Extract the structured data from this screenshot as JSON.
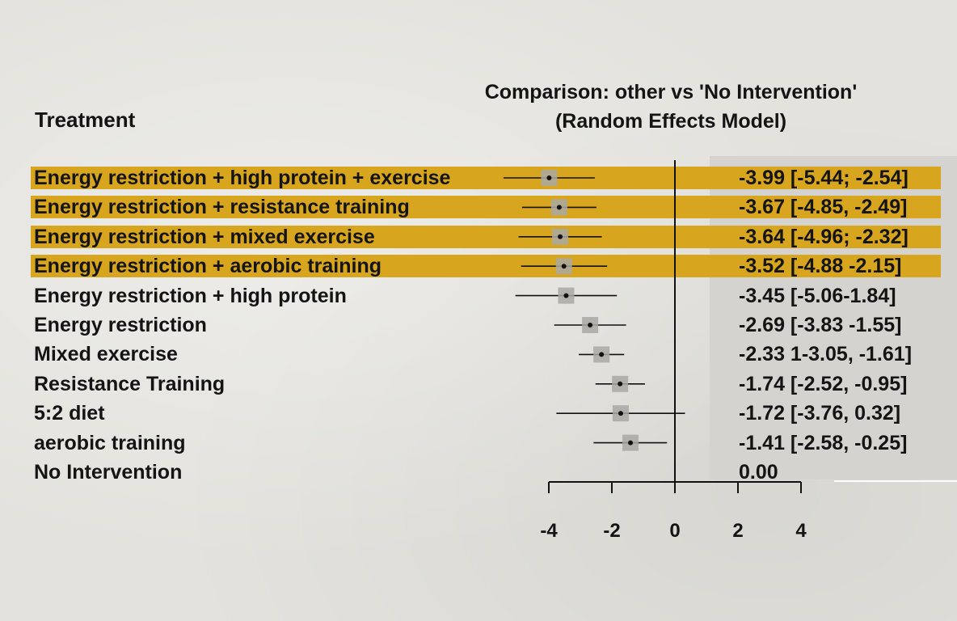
{
  "header": {
    "treatment_label": "Treatment",
    "title_line1": "Comparison: other vs 'No Intervention'",
    "title_line2": "(Random Effects Model)"
  },
  "colors": {
    "highlight": "#d7a51e",
    "marker": "#a9a8a3",
    "line": "#111111"
  },
  "chart_data": {
    "type": "forest",
    "title": "Comparison: other vs 'No Intervention' (Random Effects Model)",
    "xlim": [
      -4,
      4
    ],
    "xticks": [
      "-4",
      "-2",
      "0",
      "2",
      "4"
    ],
    "reference_line": 0,
    "rows": [
      {
        "label": "Energy restriction + high protein + exercise",
        "est": -3.99,
        "lo": -5.44,
        "hi": -2.54,
        "text": "-3.99 [-5.44; -2.54]",
        "highlight": true
      },
      {
        "label": "Energy restriction + resistance training",
        "est": -3.67,
        "lo": -4.85,
        "hi": -2.49,
        "text": "-3.67 [-4.85, -2.49]",
        "highlight": true
      },
      {
        "label": "Energy restriction + mixed exercise",
        "est": -3.64,
        "lo": -4.96,
        "hi": -2.32,
        "text": "-3.64 [-4.96; -2.32]",
        "highlight": true
      },
      {
        "label": "Energy restriction + aerobic training",
        "est": -3.52,
        "lo": -4.88,
        "hi": -2.15,
        "text": "-3.52 [-4.88 -2.15]",
        "highlight": true
      },
      {
        "label": "Energy restriction + high protein",
        "est": -3.45,
        "lo": -5.06,
        "hi": -1.84,
        "text": "-3.45 [-5.06-1.84]",
        "highlight": false
      },
      {
        "label": "Energy restriction",
        "est": -2.69,
        "lo": -3.83,
        "hi": -1.55,
        "text": "-2.69 [-3.83 -1.55]",
        "highlight": false
      },
      {
        "label": "Mixed exercise",
        "est": -2.33,
        "lo": -3.05,
        "hi": -1.61,
        "text": "-2.33 1-3.05, -1.61]",
        "highlight": false
      },
      {
        "label": "Resistance Training",
        "est": -1.74,
        "lo": -2.52,
        "hi": -0.95,
        "text": "-1.74 [-2.52, -0.95]",
        "highlight": false
      },
      {
        "label": "5:2 diet",
        "est": -1.72,
        "lo": -3.76,
        "hi": 0.32,
        "text": "-1.72 [-3.76, 0.32]",
        "highlight": false
      },
      {
        "label": "aerobic training",
        "est": -1.41,
        "lo": -2.58,
        "hi": -0.25,
        "text": "-1.41 [-2.58, -0.25]",
        "highlight": false
      },
      {
        "label": "No Intervention",
        "est": 0,
        "lo": null,
        "hi": null,
        "text": "0.00",
        "highlight": false
      }
    ]
  }
}
